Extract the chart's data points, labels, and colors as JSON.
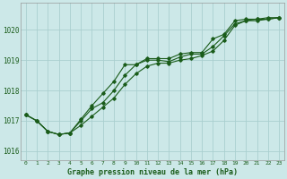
{
  "xlabel": "Graphe pression niveau de la mer (hPa)",
  "background_color": "#cce8e8",
  "grid_color": "#aacfcf",
  "line_color": "#1a5c1a",
  "xlim": [
    -0.5,
    23.5
  ],
  "ylim": [
    1015.7,
    1020.9
  ],
  "yticks": [
    1016,
    1017,
    1018,
    1019,
    1020
  ],
  "xticks": [
    0,
    1,
    2,
    3,
    4,
    5,
    6,
    7,
    8,
    9,
    10,
    11,
    12,
    13,
    14,
    15,
    16,
    17,
    18,
    19,
    20,
    21,
    22,
    23
  ],
  "series1": [
    1017.2,
    1017.0,
    1016.65,
    1016.55,
    1016.6,
    1016.85,
    1017.15,
    1017.45,
    1017.75,
    1018.2,
    1018.55,
    1018.8,
    1018.9,
    1018.9,
    1019.0,
    1019.05,
    1019.15,
    1019.3,
    1019.65,
    1020.15,
    1020.3,
    1020.35,
    1020.35,
    1020.4
  ],
  "series2": [
    1017.2,
    1017.0,
    1016.65,
    1016.55,
    1016.6,
    1017.0,
    1017.4,
    1017.6,
    1018.0,
    1018.5,
    1018.85,
    1019.0,
    1019.0,
    1018.95,
    1019.1,
    1019.2,
    1019.2,
    1019.45,
    1019.8,
    1020.2,
    1020.3,
    1020.3,
    1020.35,
    1020.4
  ],
  "series3": [
    1017.2,
    1017.0,
    1016.65,
    1016.55,
    1016.6,
    1017.05,
    1017.5,
    1017.9,
    1018.3,
    1018.85,
    1018.85,
    1019.05,
    1019.05,
    1019.05,
    1019.2,
    1019.25,
    1019.25,
    1019.7,
    1019.85,
    1020.3,
    1020.35,
    1020.35,
    1020.4,
    1020.4
  ]
}
